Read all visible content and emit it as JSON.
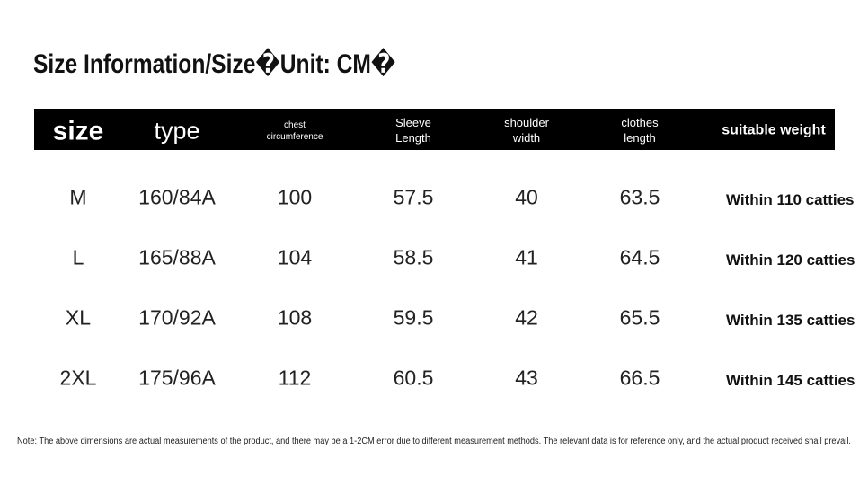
{
  "title": "Size Information/Size�Unit: CM�",
  "table": {
    "header": [
      "size",
      "type",
      "chest circumference",
      "Sleeve Length",
      "shoulder width",
      "clothes length",
      "suitable weight"
    ],
    "rows": [
      [
        "M",
        "160/84A",
        "100",
        "57.5",
        "40",
        "63.5",
        "Within 110 catties"
      ],
      [
        "L",
        "165/88A",
        "104",
        "58.5",
        "41",
        "64.5",
        "Within 120 catties"
      ],
      [
        "XL",
        "170/92A",
        "108",
        "59.5",
        "42",
        "65.5",
        "Within 135 catties"
      ],
      [
        "2XL",
        "175/96A",
        "112",
        "60.5",
        "43",
        "66.5",
        "Within 145 catties"
      ]
    ]
  },
  "note": "Note: The above dimensions are actual measurements of the product, and there may be a 1-2CM error due to different measurement methods. The relevant data is for reference only, and the actual product received shall prevail."
}
